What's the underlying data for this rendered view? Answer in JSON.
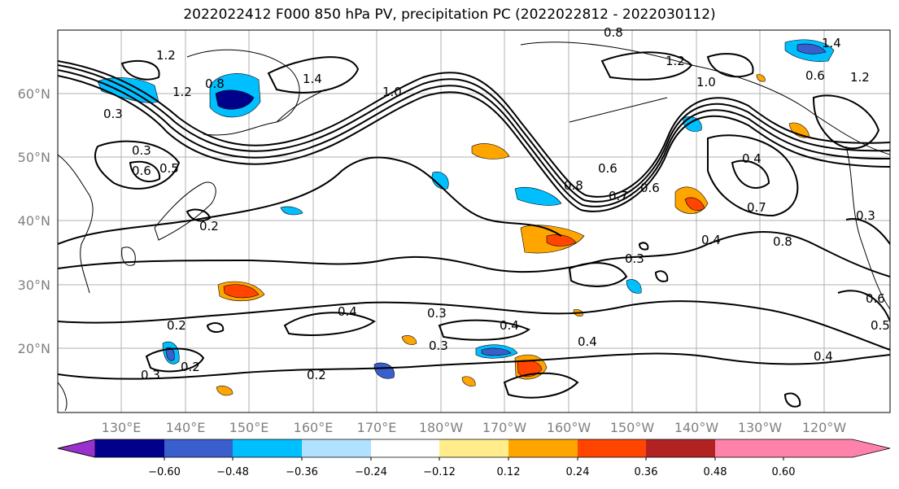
{
  "title": "2022022412 F000 850 hPa PV, precipitation PC (2022022812 - 2022030112)",
  "map": {
    "lat_labels": [
      "60°N",
      "50°N",
      "40°N",
      "30°N",
      "20°N"
    ],
    "lon_labels": [
      "130°E",
      "140°E",
      "150°E",
      "160°E",
      "170°E",
      "180°W",
      "170°W",
      "160°W",
      "150°W",
      "140°W",
      "130°W",
      "120°W"
    ],
    "contour_labels": [
      "1.2",
      "1.2",
      "0.8",
      "1.4",
      "1.2",
      "0.3",
      "0.6",
      "0.5",
      "0.2",
      "1.0",
      "0.8",
      "0.6",
      "1.0",
      "0.8",
      "0.7",
      "0.6",
      "0.7",
      "0.4",
      "0.8",
      "0.3",
      "0.3",
      "0.4",
      "0.3",
      "0.4",
      "0.4",
      "0.2",
      "0.3",
      "0.2",
      "0.3",
      "0.2",
      "0.4",
      "0.6",
      "0.5",
      "0.3",
      "0.4",
      "1.4",
      "0.6",
      "1.2"
    ]
  },
  "colorbar": {
    "ticks": [
      "−0.60",
      "−0.48",
      "−0.36",
      "−0.24",
      "−0.12",
      "0.12",
      "0.24",
      "0.36",
      "0.48",
      "0.60"
    ],
    "colors": [
      "#9932cc",
      "#00008b",
      "#3a5fcd",
      "#00bfff",
      "#b0e2ff",
      "#ffffff",
      "#ffec8b",
      "#ffa500",
      "#ff4500",
      "#b22222",
      "#ff82ab"
    ]
  }
}
